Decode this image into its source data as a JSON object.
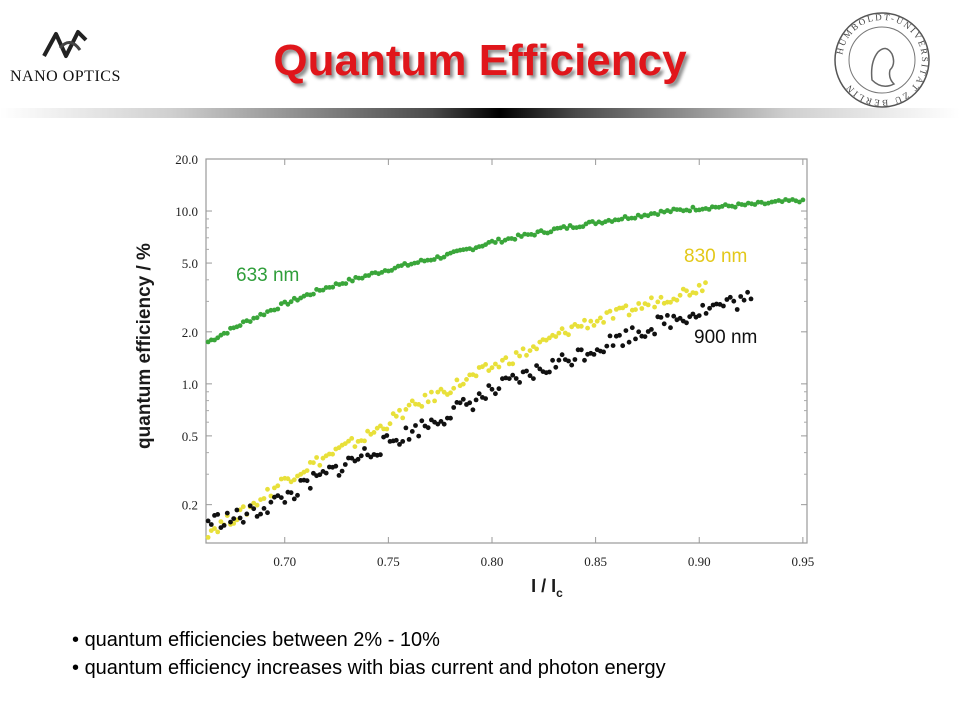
{
  "header": {
    "title": "Quantum Efficiency",
    "logo_text": "NANO OPTICS",
    "seal_text": "HUMBOLDT-UNIVERSITÄT ZU BERLIN"
  },
  "bullets": [
    "quantum efficiencies between 2% - 10%",
    "quantum efficiency increases with bias current and photon energy"
  ],
  "chart_data": {
    "type": "scatter",
    "xlabel": "I / I",
    "xlabel_sub": "c",
    "ylabel": "quantum efficiency / %",
    "yscale": "log",
    "xlim": [
      0.662,
      0.952
    ],
    "ylim": [
      0.12,
      20.0
    ],
    "xticks": [
      "0.70",
      "0.75",
      "0.80",
      "0.85",
      "0.90",
      "0.95"
    ],
    "yticks": [
      "0.2",
      "0.5",
      "1.0",
      "2.0",
      "5.0",
      "10.0",
      "20.0"
    ],
    "series": [
      {
        "name": "633 nm",
        "color": "#3aa63a",
        "points": [
          [
            0.663,
            1.75
          ],
          [
            0.68,
            2.25
          ],
          [
            0.7,
            2.9
          ],
          [
            0.72,
            3.6
          ],
          [
            0.75,
            4.6
          ],
          [
            0.78,
            5.6
          ],
          [
            0.8,
            6.6
          ],
          [
            0.83,
            7.8
          ],
          [
            0.85,
            8.6
          ],
          [
            0.88,
            9.8
          ],
          [
            0.9,
            10.4
          ],
          [
            0.93,
            11.0
          ],
          [
            0.95,
            11.6
          ]
        ]
      },
      {
        "name": "830 nm",
        "color": "#e8e03a",
        "points": [
          [
            0.663,
            0.14
          ],
          [
            0.68,
            0.18
          ],
          [
            0.7,
            0.28
          ],
          [
            0.72,
            0.38
          ],
          [
            0.74,
            0.5
          ],
          [
            0.76,
            0.72
          ],
          [
            0.78,
            0.95
          ],
          [
            0.8,
            1.25
          ],
          [
            0.82,
            1.6
          ],
          [
            0.84,
            2.15
          ],
          [
            0.86,
            2.5
          ],
          [
            0.88,
            3.05
          ],
          [
            0.9,
            3.6
          ],
          [
            0.903,
            3.85
          ]
        ]
      },
      {
        "name": "900 nm",
        "color": "#111111",
        "points": [
          [
            0.663,
            0.16
          ],
          [
            0.68,
            0.17
          ],
          [
            0.7,
            0.22
          ],
          [
            0.72,
            0.3
          ],
          [
            0.74,
            0.4
          ],
          [
            0.76,
            0.52
          ],
          [
            0.78,
            0.68
          ],
          [
            0.8,
            0.9
          ],
          [
            0.82,
            1.15
          ],
          [
            0.84,
            1.45
          ],
          [
            0.86,
            1.8
          ],
          [
            0.88,
            2.2
          ],
          [
            0.9,
            2.65
          ],
          [
            0.91,
            2.85
          ],
          [
            0.925,
            3.1
          ]
        ]
      }
    ],
    "annotations": [
      "633 nm",
      "830 nm",
      "900 nm"
    ]
  }
}
